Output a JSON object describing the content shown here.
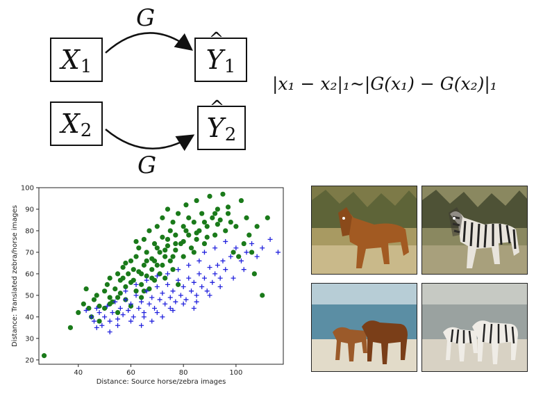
{
  "diagram": {
    "inputs": [
      {
        "var": "X",
        "sub": "1"
      },
      {
        "var": "X",
        "sub": "2"
      }
    ],
    "outputs": [
      {
        "var": "Y",
        "sub": "1"
      },
      {
        "var": "Y",
        "sub": "2"
      }
    ],
    "mapping_label": "G"
  },
  "formula": "|x₁ − x₂|₁~|G(x₁) − G(x₂)|₁",
  "chart_data": {
    "type": "scatter",
    "xlabel": "Distance: Source horse/zebra images",
    "ylabel": "Distance: Translated zebra/horse images",
    "xlim": [
      25,
      118
    ],
    "ylim": [
      18,
      100
    ],
    "xticks": [
      40,
      60,
      80,
      100
    ],
    "yticks": [
      20,
      30,
      40,
      50,
      60,
      70,
      80,
      90,
      100
    ],
    "grid": false,
    "series": [
      {
        "marker": "circle",
        "color": "#1a7a1a",
        "points": [
          [
            27,
            22
          ],
          [
            37,
            35
          ],
          [
            40,
            42
          ],
          [
            42,
            46
          ],
          [
            43,
            53
          ],
          [
            44,
            44
          ],
          [
            45,
            40
          ],
          [
            46,
            48
          ],
          [
            48,
            45
          ],
          [
            48,
            38
          ],
          [
            50,
            52
          ],
          [
            50,
            44
          ],
          [
            51,
            55
          ],
          [
            52,
            49
          ],
          [
            52,
            58
          ],
          [
            53,
            47
          ],
          [
            54,
            53
          ],
          [
            55,
            60
          ],
          [
            55,
            42
          ],
          [
            56,
            51
          ],
          [
            56,
            57
          ],
          [
            57,
            63
          ],
          [
            58,
            48
          ],
          [
            58,
            54
          ],
          [
            59,
            60
          ],
          [
            60,
            66
          ],
          [
            60,
            45
          ],
          [
            61,
            57
          ],
          [
            62,
            52
          ],
          [
            62,
            68
          ],
          [
            63,
            61
          ],
          [
            63,
            72
          ],
          [
            64,
            55
          ],
          [
            64,
            49
          ],
          [
            65,
            64
          ],
          [
            65,
            76
          ],
          [
            66,
            59
          ],
          [
            66,
            70
          ],
          [
            67,
            53
          ],
          [
            67,
            80
          ],
          [
            68,
            62
          ],
          [
            68,
            67
          ],
          [
            69,
            74
          ],
          [
            69,
            57
          ],
          [
            70,
            82
          ],
          [
            70,
            64
          ],
          [
            71,
            70
          ],
          [
            71,
            60
          ],
          [
            72,
            77
          ],
          [
            72,
            86
          ],
          [
            73,
            68
          ],
          [
            73,
            58
          ],
          [
            74,
            73
          ],
          [
            74,
            90
          ],
          [
            75,
            66
          ],
          [
            75,
            80
          ],
          [
            76,
            84
          ],
          [
            76,
            62
          ],
          [
            77,
            71
          ],
          [
            77,
            78
          ],
          [
            78,
            88
          ],
          [
            78,
            55
          ],
          [
            79,
            74
          ],
          [
            80,
            82
          ],
          [
            80,
            68
          ],
          [
            81,
            92
          ],
          [
            82,
            78
          ],
          [
            82,
            86
          ],
          [
            83,
            72
          ],
          [
            84,
            84
          ],
          [
            85,
            76
          ],
          [
            85,
            94
          ],
          [
            86,
            80
          ],
          [
            87,
            88
          ],
          [
            88,
            74
          ],
          [
            89,
            82
          ],
          [
            90,
            96
          ],
          [
            91,
            86
          ],
          [
            92,
            78
          ],
          [
            93,
            90
          ],
          [
            94,
            85
          ],
          [
            95,
            97
          ],
          [
            96,
            80
          ],
          [
            97,
            91
          ],
          [
            98,
            84
          ],
          [
            99,
            70
          ],
          [
            100,
            82
          ],
          [
            101,
            68
          ],
          [
            102,
            94
          ],
          [
            103,
            74
          ],
          [
            104,
            86
          ],
          [
            105,
            78
          ],
          [
            106,
            70
          ],
          [
            107,
            60
          ],
          [
            108,
            82
          ],
          [
            110,
            50
          ],
          [
            112,
            86
          ],
          [
            58,
            65
          ],
          [
            62,
            75
          ],
          [
            66,
            66
          ],
          [
            70,
            72
          ],
          [
            74,
            76
          ],
          [
            55,
            49
          ],
          [
            60,
            56
          ],
          [
            64,
            60
          ],
          [
            68,
            58
          ],
          [
            72,
            64
          ],
          [
            76,
            68
          ],
          [
            80,
            75
          ],
          [
            84,
            70
          ],
          [
            88,
            84
          ],
          [
            92,
            88
          ],
          [
            47,
            50
          ],
          [
            52,
            46
          ],
          [
            57,
            58
          ],
          [
            61,
            62
          ],
          [
            65,
            52
          ],
          [
            69,
            66
          ],
          [
            73,
            71
          ],
          [
            77,
            74
          ],
          [
            81,
            80
          ],
          [
            85,
            79
          ],
          [
            89,
            77
          ],
          [
            93,
            83
          ],
          [
            97,
            88
          ]
        ]
      },
      {
        "marker": "plus",
        "color": "#2222dd",
        "points": [
          [
            43,
            43
          ],
          [
            45,
            40
          ],
          [
            46,
            38
          ],
          [
            47,
            44
          ],
          [
            48,
            42
          ],
          [
            49,
            36
          ],
          [
            50,
            40
          ],
          [
            51,
            45
          ],
          [
            52,
            38
          ],
          [
            53,
            42
          ],
          [
            54,
            47
          ],
          [
            55,
            39
          ],
          [
            56,
            44
          ],
          [
            57,
            41
          ],
          [
            58,
            48
          ],
          [
            59,
            43
          ],
          [
            60,
            46
          ],
          [
            61,
            40
          ],
          [
            62,
            50
          ],
          [
            63,
            44
          ],
          [
            64,
            47
          ],
          [
            65,
            42
          ],
          [
            66,
            52
          ],
          [
            67,
            46
          ],
          [
            68,
            49
          ],
          [
            69,
            44
          ],
          [
            70,
            54
          ],
          [
            71,
            48
          ],
          [
            72,
            51
          ],
          [
            73,
            46
          ],
          [
            74,
            55
          ],
          [
            75,
            49
          ],
          [
            76,
            52
          ],
          [
            77,
            47
          ],
          [
            78,
            57
          ],
          [
            79,
            50
          ],
          [
            80,
            54
          ],
          [
            81,
            48
          ],
          [
            82,
            58
          ],
          [
            83,
            52
          ],
          [
            84,
            56
          ],
          [
            85,
            50
          ],
          [
            86,
            60
          ],
          [
            87,
            54
          ],
          [
            88,
            58
          ],
          [
            89,
            52
          ],
          [
            90,
            63
          ],
          [
            91,
            56
          ],
          [
            92,
            60
          ],
          [
            93,
            64
          ],
          [
            94,
            58
          ],
          [
            95,
            66
          ],
          [
            96,
            62
          ],
          [
            98,
            68
          ],
          [
            100,
            72
          ],
          [
            102,
            66
          ],
          [
            104,
            70
          ],
          [
            106,
            74
          ],
          [
            108,
            68
          ],
          [
            110,
            72
          ],
          [
            113,
            76
          ],
          [
            116,
            70
          ],
          [
            55,
            36
          ],
          [
            60,
            38
          ],
          [
            65,
            40
          ],
          [
            70,
            42
          ],
          [
            75,
            44
          ],
          [
            80,
            46
          ],
          [
            85,
            47
          ],
          [
            90,
            50
          ],
          [
            58,
            52
          ],
          [
            62,
            55
          ],
          [
            66,
            57
          ],
          [
            70,
            59
          ],
          [
            74,
            60
          ],
          [
            78,
            62
          ],
          [
            82,
            64
          ],
          [
            86,
            66
          ],
          [
            88,
            70
          ],
          [
            92,
            72
          ],
          [
            96,
            75
          ],
          [
            47,
            35
          ],
          [
            52,
            33
          ],
          [
            68,
            38
          ],
          [
            72,
            40
          ],
          [
            64,
            36
          ],
          [
            76,
            43
          ],
          [
            84,
            44
          ],
          [
            94,
            54
          ],
          [
            99,
            58
          ],
          [
            103,
            62
          ]
        ]
      }
    ]
  },
  "photos": [
    {
      "label": "horse-field"
    },
    {
      "label": "zebra-field"
    },
    {
      "label": "horses-beach"
    },
    {
      "label": "zebras-beach"
    }
  ]
}
